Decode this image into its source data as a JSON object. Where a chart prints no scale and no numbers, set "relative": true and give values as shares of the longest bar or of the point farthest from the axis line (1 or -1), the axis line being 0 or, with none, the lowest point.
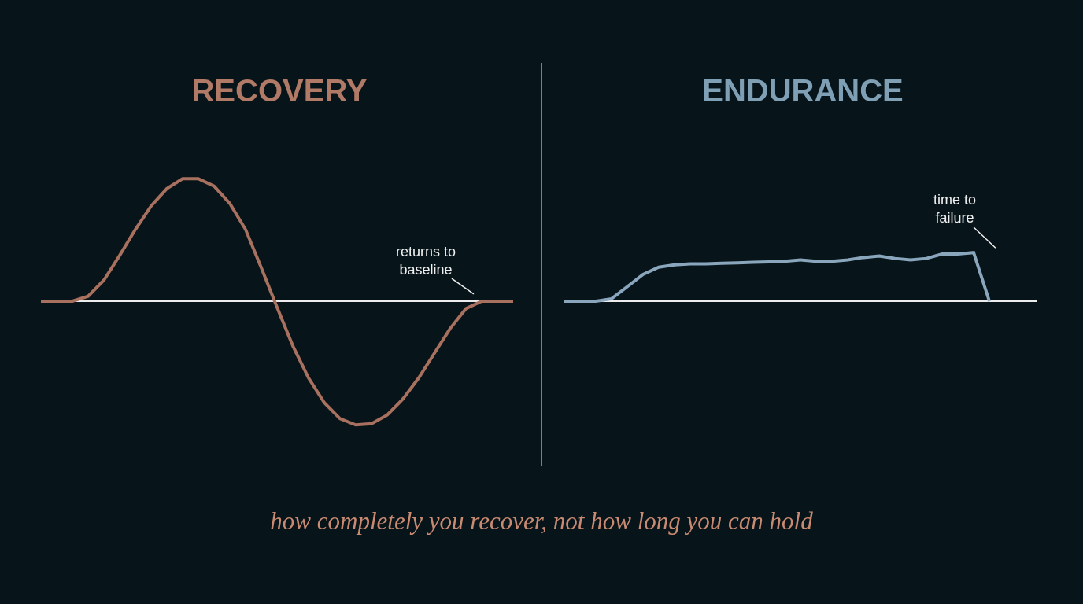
{
  "chart_data": [
    {
      "type": "line",
      "title": "RECOVERY",
      "relative": true,
      "categories": [
        null,
        null,
        null,
        null,
        null,
        null,
        null,
        null,
        null,
        null,
        null,
        null,
        null,
        null,
        null,
        null,
        null,
        null,
        null,
        null,
        null,
        null,
        null,
        null,
        null,
        null,
        null,
        null,
        null,
        null,
        null
      ],
      "series": [
        {
          "color": "#a8705e",
          "values": [
            0,
            0,
            0,
            0.04,
            0.17,
            0.37,
            0.58,
            0.77,
            0.91,
            0.99,
            0.99,
            0.93,
            0.79,
            0.58,
            0.27,
            -0.05,
            -0.36,
            -0.62,
            -0.82,
            -0.95,
            -1,
            -0.99,
            -0.92,
            -0.79,
            -0.62,
            -0.42,
            -0.22,
            -0.06,
            0,
            0,
            0
          ]
        }
      ],
      "annotations": [
        "returns to baseline",
        "how completely you recover, not how long you can hold"
      ],
      "marker": "none",
      "line_style": "solid"
    },
    {
      "type": "line",
      "title": "ENDURANCE",
      "relative": true,
      "categories": [
        null,
        null,
        null,
        null,
        null,
        null,
        null,
        null,
        null,
        null,
        null,
        null,
        null,
        null,
        null,
        null,
        null,
        null,
        null,
        null,
        null,
        null,
        null,
        null,
        null,
        null,
        null,
        null,
        null,
        null,
        null
      ],
      "series": [
        {
          "color": "#8aa6bd",
          "values": [
            0,
            0,
            0,
            0.05,
            0.3,
            0.55,
            0.7,
            0.75,
            0.77,
            0.77,
            0.78,
            0.79,
            0.8,
            0.81,
            0.82,
            0.85,
            0.82,
            0.82,
            0.85,
            0.9,
            0.93,
            0.88,
            0.85,
            0.88,
            0.97,
            0.97,
            1,
            0,
            null,
            null,
            null
          ]
        }
      ],
      "annotations": [
        "time to failure"
      ],
      "marker": "none",
      "line_style": "solid"
    }
  ]
}
